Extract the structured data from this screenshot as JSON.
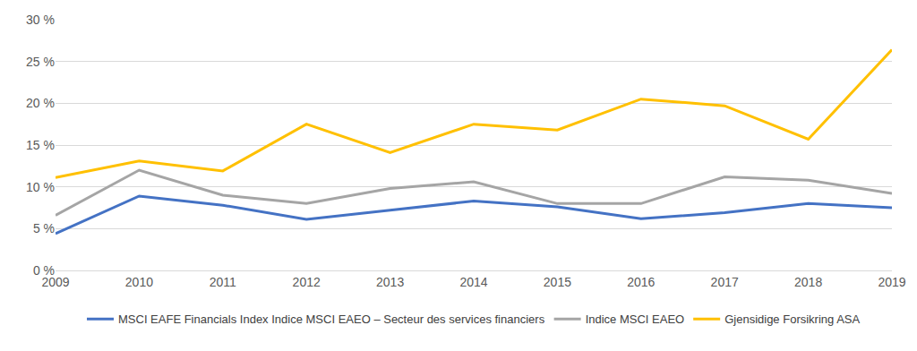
{
  "chart_data": {
    "type": "line",
    "categories": [
      "2009",
      "2010",
      "2011",
      "2012",
      "2013",
      "2014",
      "2015",
      "2016",
      "2017",
      "2018",
      "2019"
    ],
    "series": [
      {
        "name": "MSCI EAFE Financials Index Indice MSCI EAEO – Secteur des services financiers",
        "color": "#4472c4",
        "values": [
          4.4,
          8.9,
          7.8,
          6.1,
          7.2,
          8.3,
          7.6,
          6.2,
          6.9,
          8.0,
          7.5
        ]
      },
      {
        "name": "Indice MSCI EAEO",
        "color": "#a5a5a5",
        "values": [
          6.6,
          12.0,
          9.0,
          8.0,
          9.8,
          10.6,
          8.0,
          8.0,
          11.2,
          10.8,
          9.2
        ]
      },
      {
        "name": "Gjensidige Forsikring ASA",
        "color": "#ffc000",
        "values": [
          11.1,
          13.1,
          11.9,
          17.5,
          14.1,
          17.5,
          16.8,
          20.5,
          19.7,
          15.7,
          26.4
        ]
      }
    ],
    "ylim": [
      0,
      30
    ],
    "yticks": [
      {
        "value": 0,
        "label": "0 %"
      },
      {
        "value": 5,
        "label": "5 %"
      },
      {
        "value": 10,
        "label": "10 %"
      },
      {
        "value": 15,
        "label": "15 %"
      },
      {
        "value": 20,
        "label": "20 %"
      },
      {
        "value": 25,
        "label": "25 %"
      },
      {
        "value": 30,
        "label": "30 %"
      }
    ],
    "grid": true,
    "legend": "bottom"
  }
}
